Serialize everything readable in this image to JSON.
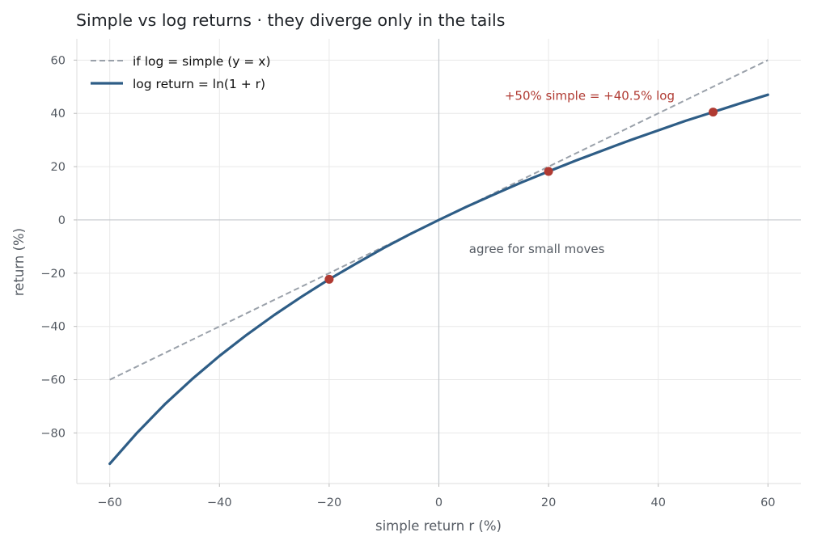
{
  "chart_data": {
    "type": "line",
    "title": "Simple vs log returns  ·  they diverge only in the tails",
    "xlabel": "simple return r (%)",
    "ylabel": "return (%)",
    "xlim": [
      -66,
      66
    ],
    "ylim": [
      -99,
      68
    ],
    "xticks": [
      -60,
      -40,
      -20,
      0,
      20,
      40,
      60
    ],
    "yticks": [
      -80,
      -60,
      -40,
      -20,
      0,
      20,
      40,
      60
    ],
    "grid": true,
    "legend_position": "top-left",
    "series": [
      {
        "name": "if log = simple (y = x)",
        "style": "dashed",
        "color": "#9aa1aa",
        "x": [
          -60,
          60
        ],
        "y": [
          -60,
          60
        ]
      },
      {
        "name": "log return = ln(1 + r)",
        "style": "solid",
        "color": "#2e5d86",
        "x": [
          -60,
          -55,
          -50,
          -45,
          -40,
          -35,
          -30,
          -25,
          -20,
          -15,
          -10,
          -5,
          0,
          5,
          10,
          15,
          20,
          25,
          30,
          35,
          40,
          45,
          50,
          55,
          60
        ],
        "y": [
          -91.6,
          -79.9,
          -69.3,
          -59.8,
          -51.1,
          -43.1,
          -35.7,
          -28.8,
          -22.3,
          -16.3,
          -10.5,
          -5.1,
          0,
          4.9,
          9.5,
          14.0,
          18.2,
          22.3,
          26.2,
          30.0,
          33.6,
          37.2,
          40.5,
          43.8,
          47.0
        ]
      }
    ],
    "highlight_points": {
      "color": "#b03a32",
      "x": [
        -20,
        20,
        50
      ],
      "y": [
        -22.3,
        18.2,
        40.5
      ]
    },
    "annotations": [
      {
        "text": "+50% simple = +40.5% log",
        "x": 12,
        "y": 45,
        "color": "#b03a32"
      },
      {
        "text": "agree for small moves",
        "x": 5.5,
        "y": -12.5,
        "color": "#555b63"
      }
    ]
  }
}
